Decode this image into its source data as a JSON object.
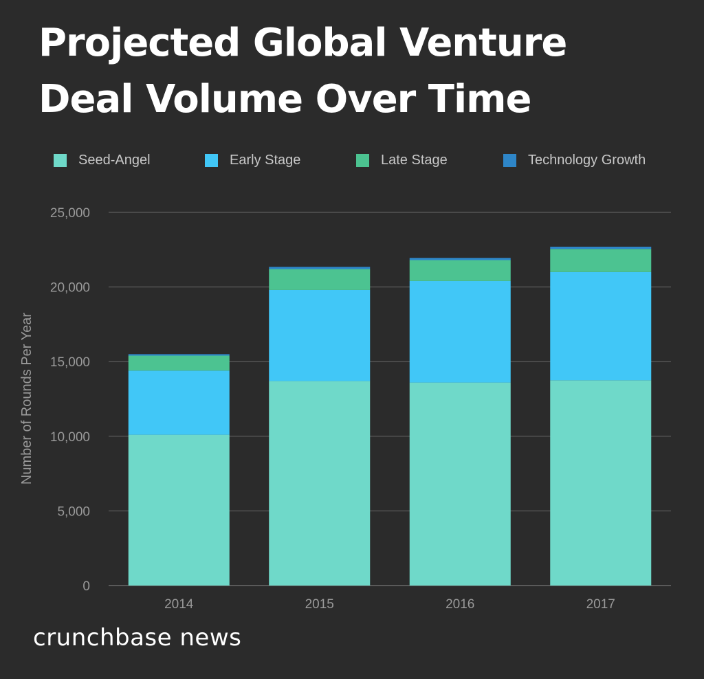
{
  "title": "Projected Global Venture Deal Volume Over Time",
  "brand": "crunchbase news",
  "colors": {
    "background": "#2b2b2b",
    "gridline": "#6a6a6a",
    "axis_text": "#9a9a9a"
  },
  "chart_data": {
    "type": "bar",
    "stacked": true,
    "title": "Projected Global Venture Deal Volume Over Time",
    "xlabel": "",
    "ylabel": "Number of Rounds Per Year",
    "categories": [
      "2014",
      "2015",
      "2016",
      "2017"
    ],
    "ylim": [
      0,
      25000
    ],
    "yticks": [
      0,
      5000,
      10000,
      15000,
      20000,
      25000
    ],
    "ytick_labels": [
      "0",
      "5,000",
      "10,000",
      "15,000",
      "20,000",
      "25,000"
    ],
    "grid": true,
    "legend_position": "top",
    "series": [
      {
        "name": "Seed-Angel",
        "color": "#6fd9c9",
        "values": [
          10100,
          13700,
          13600,
          13750
        ]
      },
      {
        "name": "Early Stage",
        "color": "#41c7f7",
        "values": [
          4300,
          6100,
          6800,
          7250
        ]
      },
      {
        "name": "Late Stage",
        "color": "#4cc391",
        "values": [
          1000,
          1400,
          1400,
          1550
        ]
      },
      {
        "name": "Technology Growth",
        "color": "#2e86c8",
        "values": [
          100,
          150,
          150,
          150
        ]
      }
    ]
  }
}
